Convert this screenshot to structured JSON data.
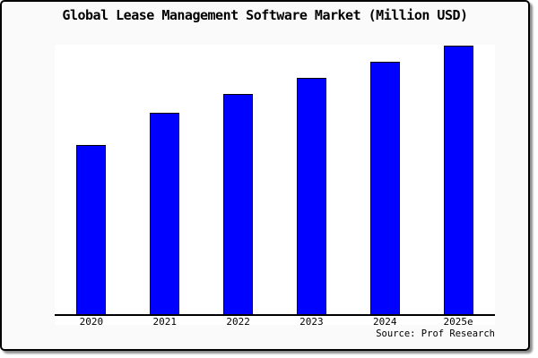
{
  "chart_data": {
    "type": "bar",
    "title": "Global Lease Management Software Market (Million USD)",
    "categories": [
      "2020",
      "2021",
      "2022",
      "2023",
      "2024",
      "2025e"
    ],
    "values": [
      63,
      75,
      82,
      88,
      94,
      100
    ],
    "value_note": "no y-axis ticks shown; values estimated from bar heights normalized to 2025e = 100",
    "xlabel": "",
    "ylabel": "",
    "ylim": [
      0,
      100
    ],
    "grid": false,
    "legend_visible": false,
    "source": "Source: Prof Research"
  },
  "colors": {
    "figure_bg": "#FAFAFA",
    "plot_bg": "#FFFFFF",
    "bar_fill": "#0000FF",
    "bar_border": "#000000",
    "axis_line": "#000000",
    "text": "#000000",
    "figure_border": "#000000"
  }
}
